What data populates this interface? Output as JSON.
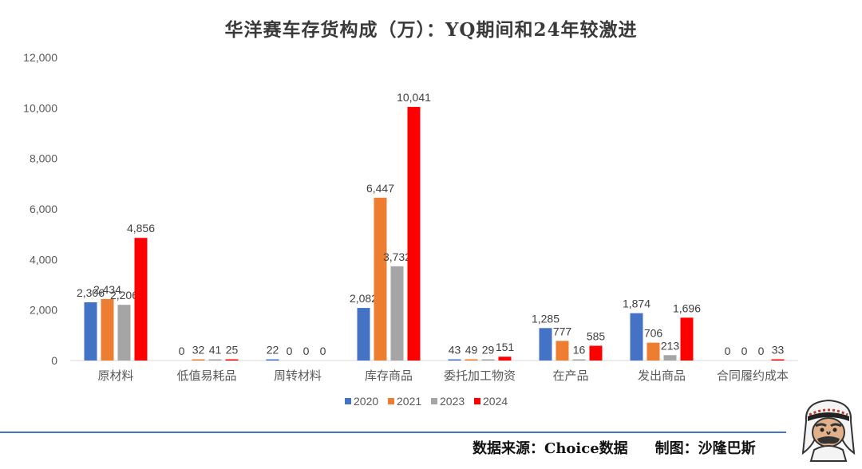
{
  "title": "华洋赛车存货构成（万）：YQ期间和24年较激进",
  "footer": {
    "source": "数据来源：Choice数据",
    "author": "制图：沙隆巴斯"
  },
  "mascot": {
    "icon": "cartoon-man-keffiyeh-icon"
  },
  "chart_data": {
    "type": "bar",
    "categories": [
      "原材料",
      "低值易耗品",
      "周转材料",
      "库存商品",
      "委托加工物资",
      "在产品",
      "发出商品",
      "合同履约成本"
    ],
    "series": [
      {
        "name": "2020",
        "color": "#4472c4",
        "values": [
          2306,
          0,
          22,
          2082,
          43,
          1285,
          1874,
          0
        ]
      },
      {
        "name": "2021",
        "color": "#ed7d31",
        "values": [
          2434,
          32,
          0,
          6447,
          49,
          777,
          706,
          0
        ]
      },
      {
        "name": "2023",
        "color": "#a5a5a5",
        "values": [
          2206,
          41,
          0,
          3732,
          29,
          16,
          213,
          0
        ]
      },
      {
        "name": "2024",
        "color": "#ff0000",
        "values": [
          4856,
          25,
          0,
          10041,
          151,
          585,
          1696,
          33
        ]
      }
    ],
    "data_labels": [
      [
        "2,306",
        "2,434",
        "2,206",
        "4,856"
      ],
      [
        "0",
        "32",
        "41",
        "25"
      ],
      [
        "22",
        "0",
        "0",
        "0"
      ],
      [
        "2,082",
        "6,447",
        "3,732",
        "10,041"
      ],
      [
        "43",
        "49",
        "29",
        "151"
      ],
      [
        "1,285",
        "777",
        "16",
        "585"
      ],
      [
        "1,874",
        "706",
        "213",
        "1,696"
      ],
      [
        "0",
        "0",
        "0",
        "33"
      ]
    ],
    "y_ticks": [
      "0",
      "2,000",
      "4,000",
      "6,000",
      "8,000",
      "10,000",
      "12,000"
    ],
    "ylim": [
      0,
      12000
    ],
    "grid": false,
    "legend_position": "bottom"
  }
}
